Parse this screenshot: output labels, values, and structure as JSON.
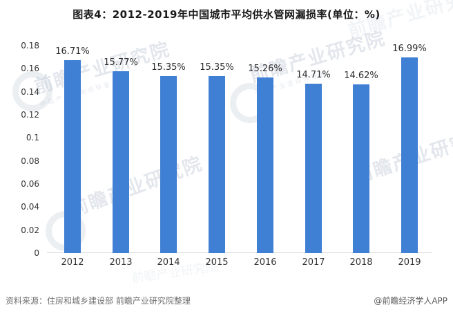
{
  "title": "图表4：2012-2019年中国城市平均供水管网漏损率(单位：%)",
  "chart_data": {
    "type": "bar",
    "categories": [
      "2012",
      "2013",
      "2014",
      "2015",
      "2016",
      "2017",
      "2018",
      "2019"
    ],
    "values": [
      0.1671,
      0.1577,
      0.1535,
      0.1535,
      0.1526,
      0.1471,
      0.1462,
      0.1699
    ],
    "labels": [
      "16.71%",
      "15.77%",
      "15.35%",
      "15.35%",
      "15.26%",
      "14.71%",
      "14.62%",
      "16.99%"
    ],
    "title": "图表4：2012-2019年中国城市平均供水管网漏损率(单位：%)",
    "xlabel": "",
    "ylabel": "",
    "ylim": [
      0,
      0.18
    ],
    "yticks": [
      "0.18",
      "0.16",
      "0.14",
      "0.12",
      "0.1",
      "0.08",
      "0.06",
      "0.04",
      "0.02",
      "0"
    ],
    "bar_color": "#3F7FD4",
    "grid": false,
    "legend": false
  },
  "footer": {
    "source": "资料来源：住房和城乡建设部 前瞻产业研究院整理",
    "credit": "@前瞻经济学人APP"
  },
  "watermark": {
    "text": "前瞻产业研究院",
    "subtext": "中国产业咨询领导者"
  }
}
